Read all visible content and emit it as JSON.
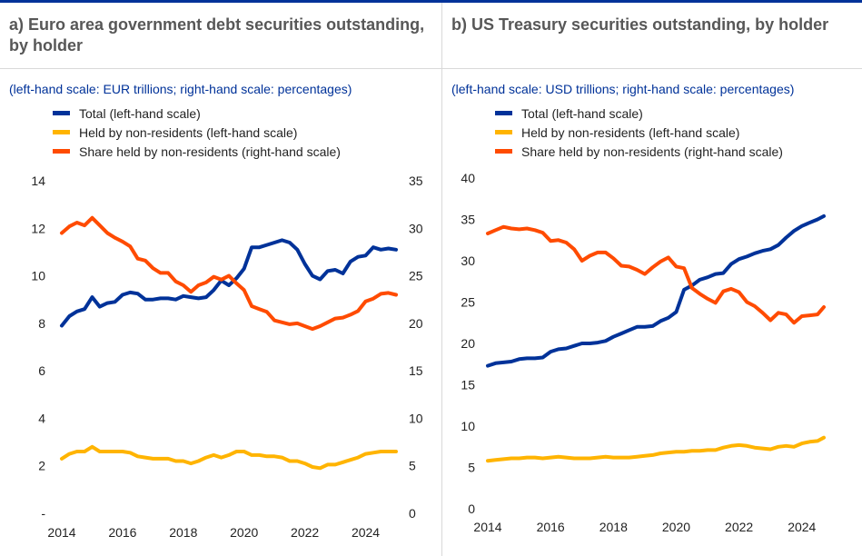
{
  "colors": {
    "total": "#003299",
    "nonres": "#ffb400",
    "share": "#ff4b00",
    "rule": "#003299"
  },
  "panels": [
    {
      "title": "a) Euro area government debt securities outstanding, by holder",
      "subtitle": "(left-hand scale: EUR trillions; right-hand scale: percentages)",
      "legend": [
        "Total (left-hand scale)",
        "Held by non-residents (left-hand scale)",
        "Share held by non-residents (right-hand scale)"
      ]
    },
    {
      "title": "b) US Treasury securities outstanding, by holder",
      "subtitle": "(left-hand scale: USD trillions; right-hand scale: percentages)",
      "legend": [
        "Total (left-hand scale)",
        "Held by non-residents (left-hand scale)",
        "Share held by non-residents (right-hand scale)"
      ]
    }
  ],
  "chart_data": [
    {
      "type": "line",
      "xlim": [
        2014,
        2025
      ],
      "x_ticks": [
        "2014",
        "2016",
        "2018",
        "2020",
        "2022",
        "2024"
      ],
      "ylim_left": [
        0,
        14
      ],
      "y_ticks_left": [
        "-",
        "2",
        "4",
        "6",
        "8",
        "10",
        "12",
        "14"
      ],
      "ylim_right": [
        0,
        35
      ],
      "y_ticks_right": [
        "0",
        "5",
        "10",
        "15",
        "20",
        "25",
        "30",
        "35"
      ],
      "grid": false,
      "series": [
        {
          "name": "Total (left-hand scale)",
          "axis": "left",
          "color": "#003299",
          "x": [
            2014.0,
            2014.25,
            2014.5,
            2014.75,
            2015.0,
            2015.25,
            2015.5,
            2015.75,
            2016.0,
            2016.25,
            2016.5,
            2016.75,
            2017.0,
            2017.25,
            2017.5,
            2017.75,
            2018.0,
            2018.25,
            2018.5,
            2018.75,
            2019.0,
            2019.25,
            2019.5,
            2019.75,
            2020.0,
            2020.25,
            2020.5,
            2020.75,
            2021.0,
            2021.25,
            2021.5,
            2021.75,
            2022.0,
            2022.25,
            2022.5,
            2022.75,
            2023.0,
            2023.25,
            2023.5,
            2023.75,
            2024.0,
            2024.25,
            2024.5,
            2024.75,
            2025.0
          ],
          "y": [
            7.9,
            8.3,
            8.5,
            8.6,
            9.1,
            8.7,
            8.85,
            8.9,
            9.2,
            9.3,
            9.25,
            9.0,
            9.0,
            9.05,
            9.05,
            9.0,
            9.15,
            9.1,
            9.05,
            9.1,
            9.4,
            9.8,
            9.6,
            9.9,
            10.3,
            11.2,
            11.2,
            11.3,
            11.4,
            11.5,
            11.4,
            11.1,
            10.5,
            10.0,
            9.85,
            10.2,
            10.25,
            10.1,
            10.6,
            10.8,
            10.85,
            11.2,
            11.1,
            11.15,
            11.1
          ]
        },
        {
          "name": "Held by non-residents (left-hand scale)",
          "axis": "left",
          "color": "#ffb400",
          "x": [
            2014.0,
            2014.25,
            2014.5,
            2014.75,
            2015.0,
            2015.25,
            2015.5,
            2015.75,
            2016.0,
            2016.25,
            2016.5,
            2016.75,
            2017.0,
            2017.25,
            2017.5,
            2017.75,
            2018.0,
            2018.25,
            2018.5,
            2018.75,
            2019.0,
            2019.25,
            2019.5,
            2019.75,
            2020.0,
            2020.25,
            2020.5,
            2020.75,
            2021.0,
            2021.25,
            2021.5,
            2021.75,
            2022.0,
            2022.25,
            2022.5,
            2022.75,
            2023.0,
            2023.25,
            2023.5,
            2023.75,
            2024.0,
            2024.25,
            2024.5,
            2024.75,
            2025.0
          ],
          "y": [
            2.3,
            2.5,
            2.6,
            2.6,
            2.8,
            2.6,
            2.6,
            2.6,
            2.6,
            2.55,
            2.4,
            2.35,
            2.3,
            2.3,
            2.3,
            2.2,
            2.2,
            2.1,
            2.2,
            2.35,
            2.45,
            2.35,
            2.45,
            2.6,
            2.6,
            2.45,
            2.45,
            2.4,
            2.4,
            2.35,
            2.2,
            2.2,
            2.1,
            1.95,
            1.9,
            2.05,
            2.05,
            2.15,
            2.25,
            2.35,
            2.5,
            2.55,
            2.6,
            2.6,
            2.6
          ]
        },
        {
          "name": "Share held by non-residents (right-hand scale)",
          "axis": "right",
          "color": "#ff4b00",
          "x": [
            2014.0,
            2014.25,
            2014.5,
            2014.75,
            2015.0,
            2015.25,
            2015.5,
            2015.75,
            2016.0,
            2016.25,
            2016.5,
            2016.75,
            2017.0,
            2017.25,
            2017.5,
            2017.75,
            2018.0,
            2018.25,
            2018.5,
            2018.75,
            2019.0,
            2019.25,
            2019.5,
            2019.75,
            2020.0,
            2020.25,
            2020.5,
            2020.75,
            2021.0,
            2021.25,
            2021.5,
            2021.75,
            2022.0,
            2022.25,
            2022.5,
            2022.75,
            2023.0,
            2023.25,
            2023.5,
            2023.75,
            2024.0,
            2024.25,
            2024.5,
            2024.75,
            2025.0
          ],
          "y": [
            29.5,
            30.2,
            30.6,
            30.3,
            31.1,
            30.3,
            29.5,
            29.0,
            28.6,
            28.1,
            26.8,
            26.6,
            25.8,
            25.3,
            25.3,
            24.4,
            24.0,
            23.3,
            24.0,
            24.3,
            24.9,
            24.6,
            25.0,
            24.2,
            23.5,
            21.8,
            21.5,
            21.2,
            20.3,
            20.1,
            19.9,
            20.0,
            19.7,
            19.4,
            19.7,
            20.1,
            20.5,
            20.6,
            20.9,
            21.3,
            22.3,
            22.6,
            23.1,
            23.2,
            23.0
          ]
        }
      ]
    },
    {
      "type": "line",
      "xlim": [
        2014,
        2024.7
      ],
      "x_ticks": [
        "2014",
        "2016",
        "2018",
        "2020",
        "2022",
        "2024"
      ],
      "ylim_left": [
        0,
        40
      ],
      "y_ticks_left": [
        "0",
        "5",
        "10",
        "15",
        "20",
        "25",
        "30",
        "35",
        "40"
      ],
      "grid": false,
      "series": [
        {
          "name": "Total (left-hand scale)",
          "axis": "left",
          "color": "#003299",
          "x": [
            2014.0,
            2014.25,
            2014.5,
            2014.75,
            2015.0,
            2015.25,
            2015.5,
            2015.75,
            2016.0,
            2016.25,
            2016.5,
            2016.75,
            2017.0,
            2017.25,
            2017.5,
            2017.75,
            2018.0,
            2018.25,
            2018.5,
            2018.75,
            2019.0,
            2019.25,
            2019.5,
            2019.75,
            2020.0,
            2020.25,
            2020.5,
            2020.75,
            2021.0,
            2021.25,
            2021.5,
            2021.75,
            2022.0,
            2022.25,
            2022.5,
            2022.75,
            2023.0,
            2023.25,
            2023.5,
            2023.75,
            2024.0,
            2024.25,
            2024.5,
            2024.7
          ],
          "y": [
            17.3,
            17.6,
            17.7,
            17.8,
            18.1,
            18.2,
            18.2,
            18.3,
            19.0,
            19.3,
            19.4,
            19.7,
            20.0,
            20.0,
            20.1,
            20.3,
            20.8,
            21.2,
            21.6,
            22.0,
            22.0,
            22.1,
            22.7,
            23.1,
            23.8,
            26.5,
            27.0,
            27.7,
            28.0,
            28.4,
            28.5,
            29.6,
            30.2,
            30.5,
            30.9,
            31.2,
            31.4,
            31.9,
            32.8,
            33.6,
            34.2,
            34.6,
            35.0,
            35.4
          ]
        },
        {
          "name": "Held by non-residents (left-hand scale)",
          "axis": "left",
          "color": "#ffb400",
          "x": [
            2014.0,
            2014.25,
            2014.5,
            2014.75,
            2015.0,
            2015.25,
            2015.5,
            2015.75,
            2016.0,
            2016.25,
            2016.5,
            2016.75,
            2017.0,
            2017.25,
            2017.5,
            2017.75,
            2018.0,
            2018.25,
            2018.5,
            2018.75,
            2019.0,
            2019.25,
            2019.5,
            2019.75,
            2020.0,
            2020.25,
            2020.5,
            2020.75,
            2021.0,
            2021.25,
            2021.5,
            2021.75,
            2022.0,
            2022.25,
            2022.5,
            2022.75,
            2023.0,
            2023.25,
            2023.5,
            2023.75,
            2024.0,
            2024.25,
            2024.5,
            2024.7
          ],
          "y": [
            5.8,
            5.9,
            6.0,
            6.1,
            6.1,
            6.2,
            6.2,
            6.1,
            6.2,
            6.3,
            6.2,
            6.1,
            6.1,
            6.1,
            6.2,
            6.3,
            6.2,
            6.2,
            6.2,
            6.3,
            6.4,
            6.5,
            6.7,
            6.8,
            6.9,
            6.9,
            7.0,
            7.0,
            7.1,
            7.1,
            7.4,
            7.6,
            7.7,
            7.6,
            7.4,
            7.3,
            7.2,
            7.5,
            7.6,
            7.5,
            7.9,
            8.1,
            8.2,
            8.6
          ]
        },
        {
          "name": "Share held by non-residents (right-hand scale)",
          "axis": "right",
          "color": "#ff4b00",
          "x": [
            2014.0,
            2014.25,
            2014.5,
            2014.75,
            2015.0,
            2015.25,
            2015.5,
            2015.75,
            2016.0,
            2016.25,
            2016.5,
            2016.75,
            2017.0,
            2017.25,
            2017.5,
            2017.75,
            2018.0,
            2018.25,
            2018.5,
            2018.75,
            2019.0,
            2019.25,
            2019.5,
            2019.75,
            2020.0,
            2020.25,
            2020.5,
            2020.75,
            2021.0,
            2021.25,
            2021.5,
            2021.75,
            2022.0,
            2022.25,
            2022.5,
            2022.75,
            2023.0,
            2023.25,
            2023.5,
            2023.75,
            2024.0,
            2024.25,
            2024.5,
            2024.7
          ],
          "y": [
            33.3,
            33.7,
            34.1,
            33.9,
            33.8,
            33.9,
            33.7,
            33.4,
            32.4,
            32.5,
            32.2,
            31.4,
            30.0,
            30.6,
            31.0,
            31.0,
            30.3,
            29.4,
            29.3,
            28.9,
            28.4,
            29.2,
            29.9,
            30.4,
            29.3,
            29.1,
            26.7,
            26.0,
            25.4,
            24.9,
            26.3,
            26.6,
            26.2,
            25.0,
            24.5,
            23.7,
            22.8,
            23.7,
            23.5,
            22.5,
            23.3,
            23.4,
            23.5,
            24.4
          ]
        }
      ]
    }
  ]
}
